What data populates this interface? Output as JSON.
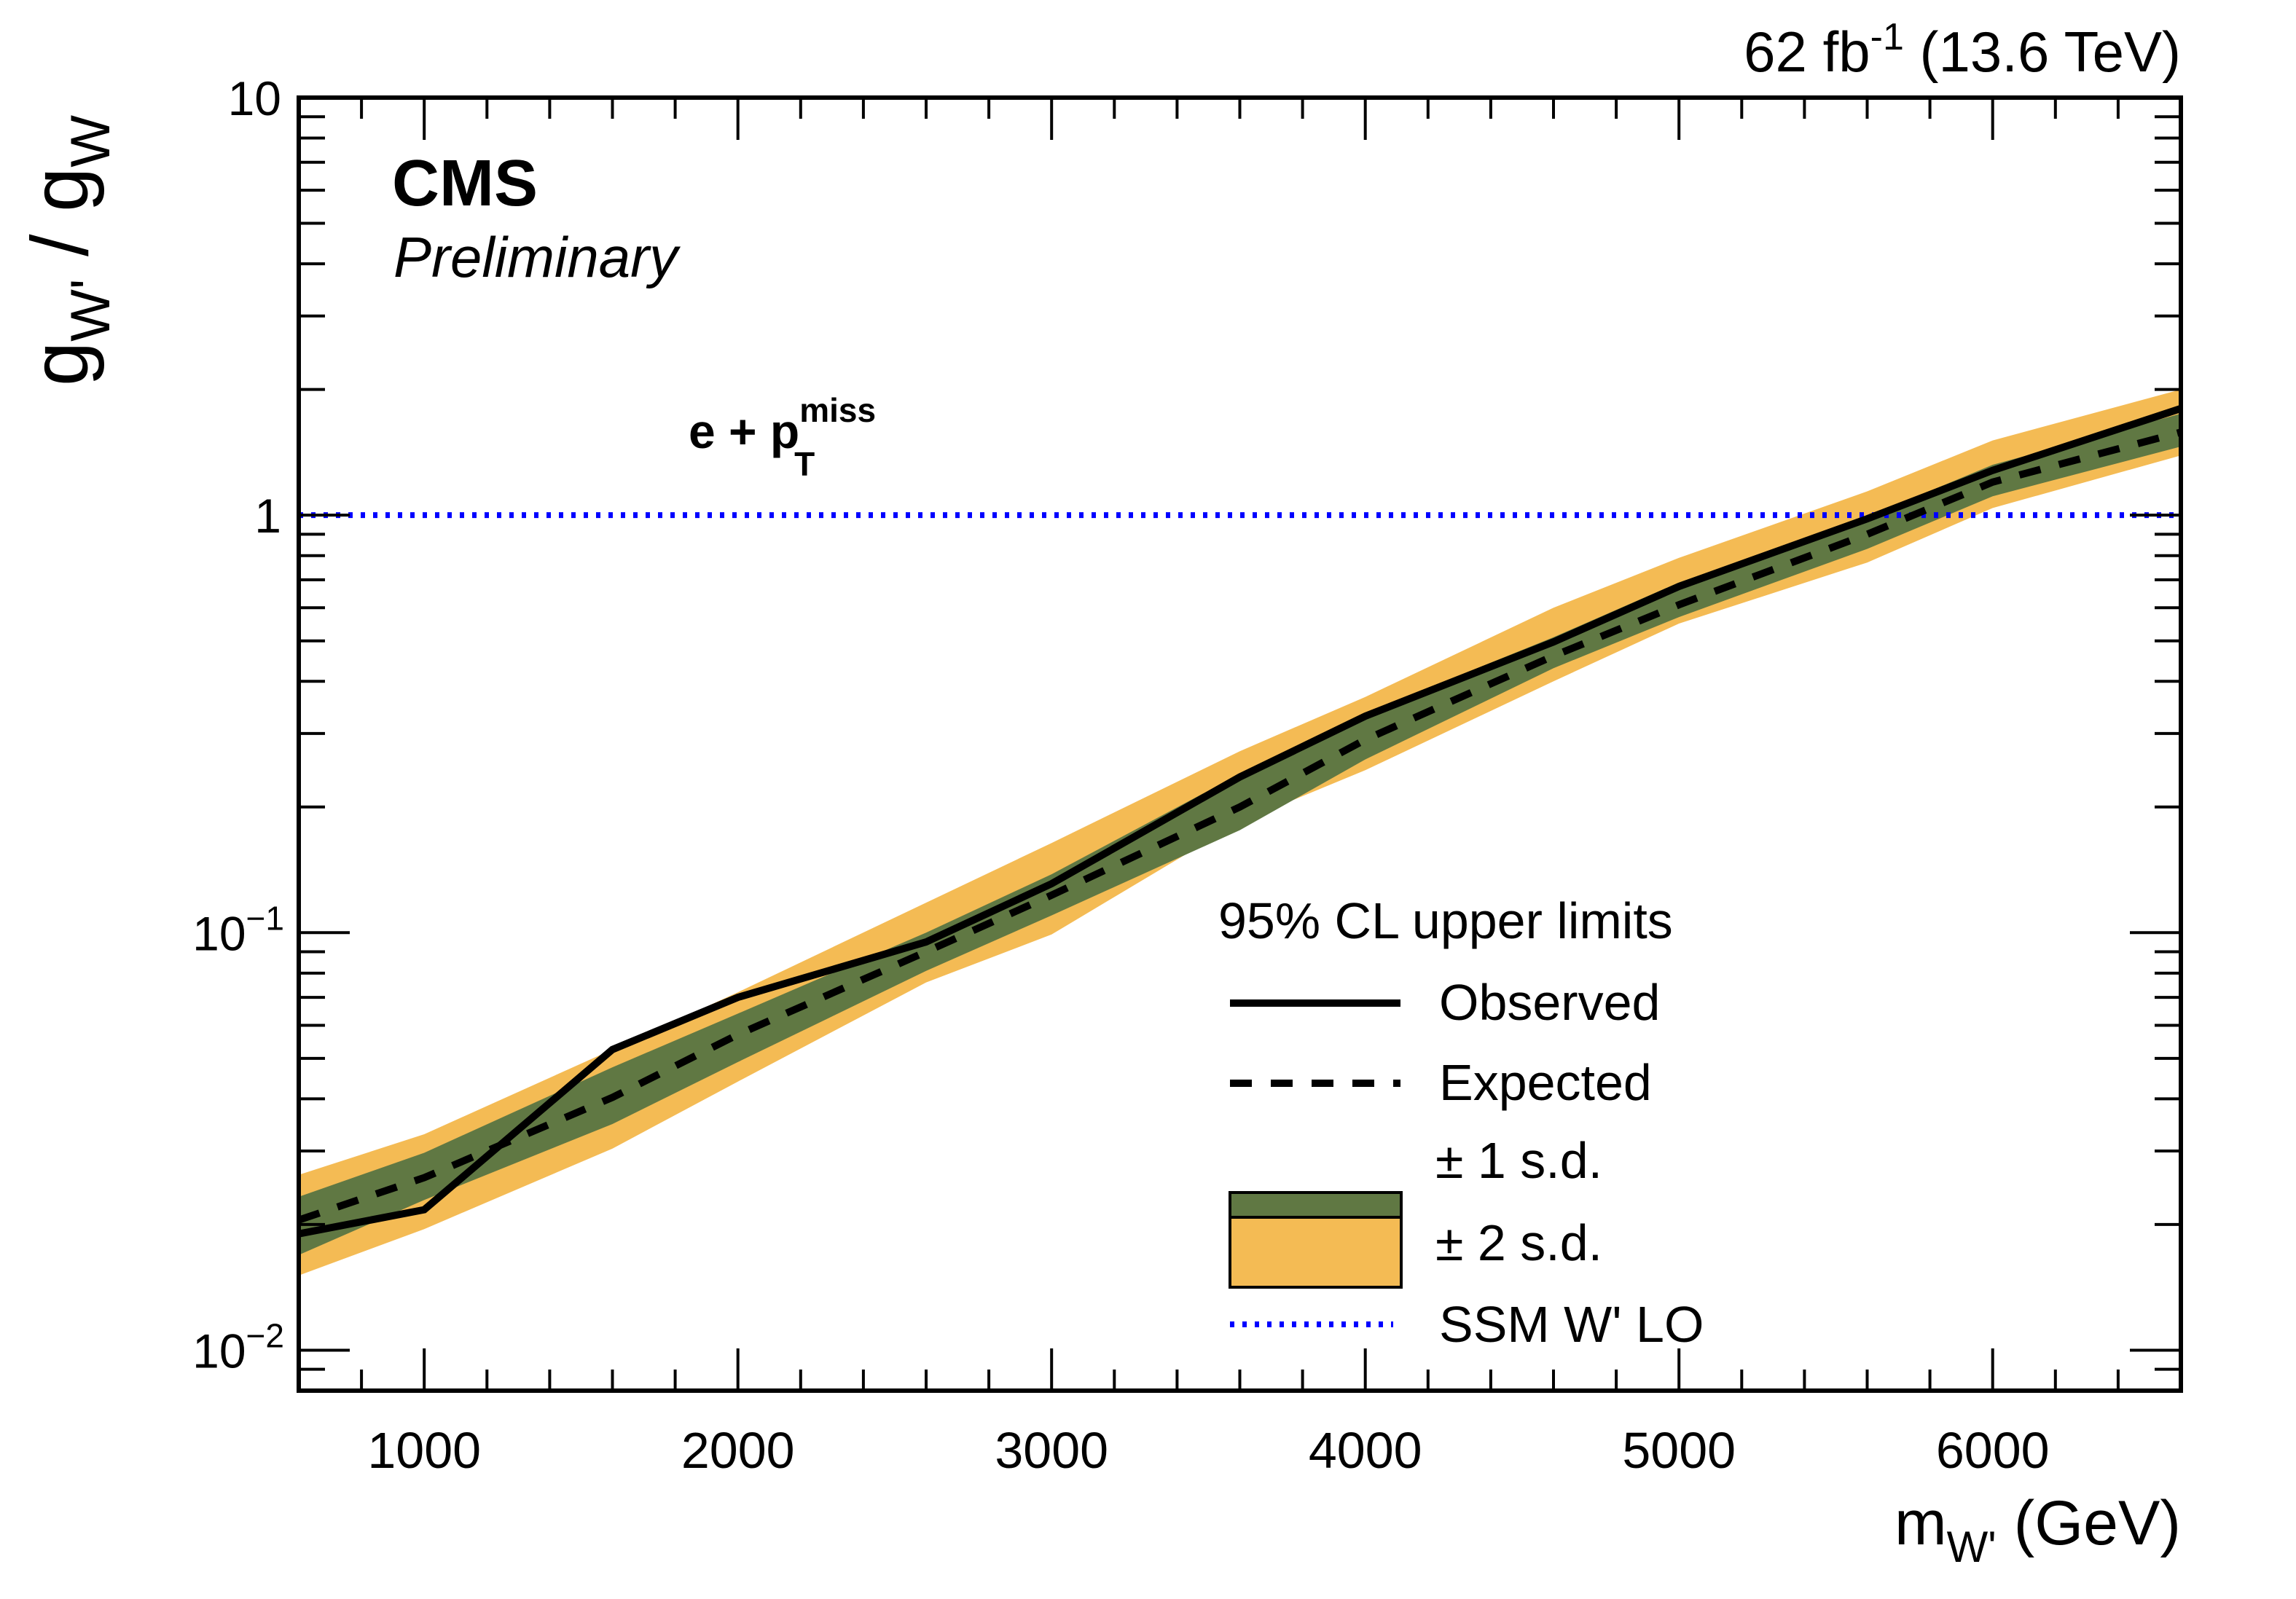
{
  "chart_data": {
    "type": "line",
    "title": "",
    "lumi_label": {
      "main": "62 fb",
      "sup": "-1",
      "tail": " (13.6 TeV)"
    },
    "experiment": "CMS",
    "status": "Preliminary",
    "channel_label": {
      "main": "e + p",
      "sup": "miss",
      "sub": "T"
    },
    "xlabel": {
      "main": "m",
      "sub": "W'",
      "tail": " (GeV)"
    },
    "ylabel": {
      "g1": "g",
      "sub1": "W'",
      "slash": " / ",
      "g2": "g",
      "sub2": "W"
    },
    "xlim": [
      600,
      6600
    ],
    "ylim": [
      0.008,
      10
    ],
    "yscale": "log",
    "grid": false,
    "x_ticks": [
      {
        "value": 1000,
        "label": "1000"
      },
      {
        "value": 2000,
        "label": "2000"
      },
      {
        "value": 3000,
        "label": "3000"
      },
      {
        "value": 4000,
        "label": "4000"
      },
      {
        "value": 5000,
        "label": "5000"
      },
      {
        "value": 6000,
        "label": "6000"
      }
    ],
    "y_ticks": [
      {
        "value": 0.01,
        "base": "10",
        "exp": "−2"
      },
      {
        "value": 0.1,
        "base": "10",
        "exp": "−1"
      },
      {
        "value": 1,
        "base": "1",
        "exp": ""
      },
      {
        "value": 10,
        "base": "10",
        "exp": ""
      }
    ],
    "x": [
      600,
      1000,
      1600,
      2000,
      2600,
      3000,
      3600,
      4000,
      4600,
      5000,
      5600,
      6000,
      6600
    ],
    "series": [
      {
        "name": "Observed",
        "style": "solid",
        "color": "#000000",
        "values": [
          0.019,
          0.0217,
          0.0525,
          0.07,
          0.095,
          0.131,
          0.236,
          0.33,
          0.497,
          0.675,
          0.98,
          1.28,
          1.8
        ]
      },
      {
        "name": "Expected",
        "style": "dashed",
        "color": "#000000",
        "values": [
          0.0205,
          0.0259,
          0.0403,
          0.057,
          0.09,
          0.123,
          0.2,
          0.29,
          0.46,
          0.61,
          0.9,
          1.2,
          1.58
        ]
      }
    ],
    "bands": [
      {
        "name": "± 2 s.d.",
        "color": "#F4BB54",
        "upper": [
          0.0263,
          0.0329,
          0.0525,
          0.072,
          0.118,
          0.164,
          0.272,
          0.367,
          0.6,
          0.79,
          1.14,
          1.51,
          2.0
        ],
        "lower": [
          0.0151,
          0.0195,
          0.0304,
          0.044,
          0.076,
          0.099,
          0.184,
          0.245,
          0.4,
          0.55,
          0.77,
          1.04,
          1.39
        ]
      },
      {
        "name": "± 1 s.d.",
        "color": "#607843",
        "upper": [
          0.0233,
          0.0297,
          0.0476,
          0.064,
          0.1,
          0.138,
          0.24,
          0.335,
          0.51,
          0.69,
          0.99,
          1.32,
          1.75
        ],
        "lower": [
          0.0169,
          0.0229,
          0.0348,
          0.049,
          0.081,
          0.11,
          0.176,
          0.26,
          0.43,
          0.57,
          0.83,
          1.11,
          1.46
        ]
      }
    ],
    "reference_line": {
      "name": "SSM W' LO",
      "value": 1,
      "color": "#0000FF",
      "style": "dotted"
    },
    "legend": {
      "title": "95% CL upper limits",
      "placement": "bottom-right",
      "entries": [
        {
          "label": "Observed",
          "kind": "solid-line",
          "color": "#000000"
        },
        {
          "label": "Expected",
          "kind": "dashed-line",
          "color": "#000000"
        },
        {
          "label": "± 1 s.d.",
          "kind": "box",
          "color": "#607843"
        },
        {
          "label": "± 2 s.d.",
          "kind": "box",
          "color": "#F4BB54"
        },
        {
          "label": "SSM W' LO",
          "kind": "dotted-line",
          "color": "#0000FF"
        }
      ]
    }
  }
}
